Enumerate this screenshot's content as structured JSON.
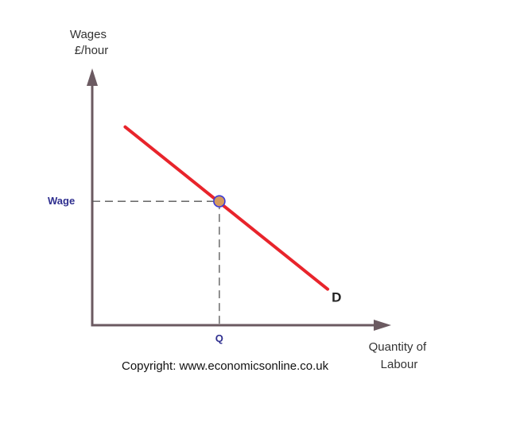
{
  "chart_data": {
    "type": "line",
    "ylabel": [
      "Wages",
      "£/hour"
    ],
    "xlabel": [
      "Quantity of",
      "Labour"
    ],
    "curve_label": "D",
    "x_tick_label": "Q",
    "y_tick_label": "Wage",
    "series": [
      {
        "name": "D",
        "color": "#e8242b",
        "x": [
          0.14,
          1.0
        ],
        "y": [
          0.88,
          0.16
        ]
      }
    ],
    "equilibrium_point": {
      "x": 0.54,
      "y": 0.55
    },
    "xlim": [
      0,
      1.27
    ],
    "ylim": [
      0,
      1.14
    ],
    "ticks": "none",
    "grid": false,
    "legend": "none"
  },
  "copyright": "Copyright: www.economicsonline.co.uk",
  "colors": {
    "axis": "#6b5a61",
    "curve": "#e8242b",
    "guide": "#555555",
    "point_fill": "#d59a5e",
    "point_stroke": "#3b3bd6",
    "tick_label": "#2f2f8f"
  }
}
